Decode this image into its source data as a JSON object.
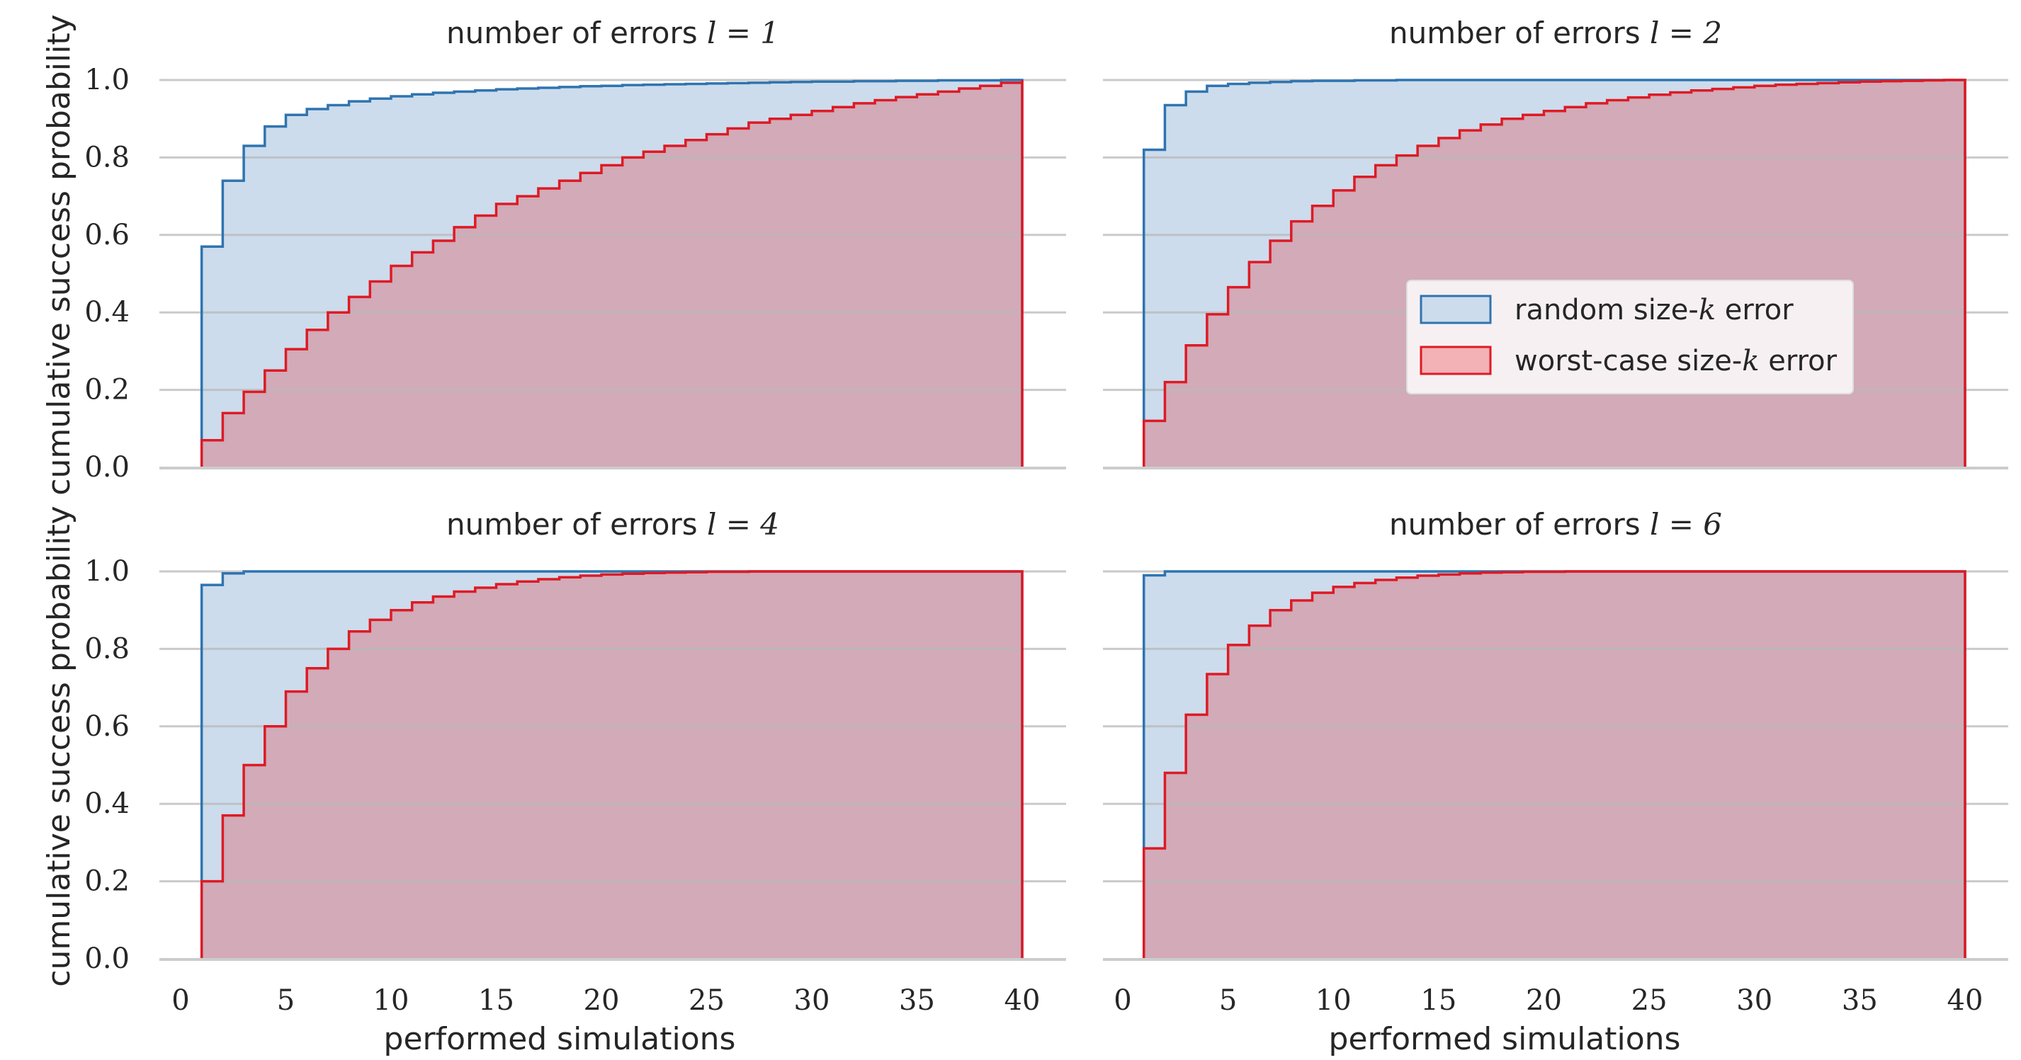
{
  "figure": {
    "ylabel": "cumulative success probability",
    "xlabel": "performed simulations"
  },
  "legend": {
    "items": [
      {
        "label_prefix": "random size-",
        "label_var": "k",
        "label_suffix": " error",
        "color": "#1f77b4"
      },
      {
        "label_prefix": "worst-case size-",
        "label_var": "k",
        "label_suffix": " error",
        "color": "#d62728"
      }
    ]
  },
  "colors": {
    "random_line": "#2f74b0",
    "random_fill": "#ccdcec",
    "worst_line": "#de1a24",
    "worst_fill": "#d2aab8",
    "grid": "#b8b8b8",
    "axis": "#cccccc"
  },
  "chart_data": [
    {
      "type": "area",
      "title_prefix": "number of errors ",
      "title_math": "l = 1",
      "xlim": [
        1,
        40
      ],
      "ylim": [
        0,
        1
      ],
      "xticks": [
        0,
        5,
        10,
        15,
        20,
        25,
        30,
        35,
        40
      ],
      "yticks": [
        "0.0",
        "0.2",
        "0.4",
        "0.6",
        "0.8",
        "1.0"
      ],
      "grid": true,
      "series": [
        {
          "name": "random size-k error",
          "x": [
            1,
            2,
            3,
            4,
            5,
            6,
            7,
            8,
            9,
            10,
            11,
            12,
            13,
            14,
            15,
            16,
            17,
            18,
            19,
            20,
            21,
            22,
            23,
            24,
            25,
            26,
            27,
            28,
            29,
            30,
            31,
            32,
            33,
            34,
            35,
            36,
            37,
            38,
            39,
            40
          ],
          "values": [
            0.57,
            0.74,
            0.83,
            0.88,
            0.91,
            0.925,
            0.935,
            0.945,
            0.952,
            0.958,
            0.963,
            0.967,
            0.97,
            0.973,
            0.976,
            0.978,
            0.98,
            0.982,
            0.984,
            0.985,
            0.987,
            0.988,
            0.989,
            0.99,
            0.991,
            0.992,
            0.993,
            0.994,
            0.995,
            0.996,
            0.996,
            0.997,
            0.997,
            0.998,
            0.998,
            0.999,
            0.999,
            0.999,
            1.0,
            1.0
          ]
        },
        {
          "name": "worst-case size-k error",
          "x": [
            1,
            2,
            3,
            4,
            5,
            6,
            7,
            8,
            9,
            10,
            11,
            12,
            13,
            14,
            15,
            16,
            17,
            18,
            19,
            20,
            21,
            22,
            23,
            24,
            25,
            26,
            27,
            28,
            29,
            30,
            31,
            32,
            33,
            34,
            35,
            36,
            37,
            38,
            39,
            40
          ],
          "values": [
            0.07,
            0.14,
            0.195,
            0.25,
            0.305,
            0.355,
            0.4,
            0.44,
            0.48,
            0.52,
            0.555,
            0.585,
            0.62,
            0.65,
            0.68,
            0.7,
            0.72,
            0.74,
            0.76,
            0.78,
            0.8,
            0.815,
            0.83,
            0.845,
            0.86,
            0.875,
            0.89,
            0.9,
            0.91,
            0.92,
            0.93,
            0.94,
            0.948,
            0.956,
            0.963,
            0.97,
            0.978,
            0.985,
            0.993,
            1.0
          ]
        }
      ]
    },
    {
      "type": "area",
      "title_prefix": "number of errors ",
      "title_math": "l = 2",
      "xlim": [
        1,
        40
      ],
      "ylim": [
        0,
        1
      ],
      "xticks": [
        0,
        5,
        10,
        15,
        20,
        25,
        30,
        35,
        40
      ],
      "yticks": [
        "0.0",
        "0.2",
        "0.4",
        "0.6",
        "0.8",
        "1.0"
      ],
      "grid": true,
      "series": [
        {
          "name": "random size-k error",
          "x": [
            1,
            2,
            3,
            4,
            5,
            6,
            7,
            8,
            9,
            10,
            11,
            12,
            13,
            14,
            15,
            16,
            17,
            18,
            19,
            20,
            21,
            22,
            23,
            24,
            25,
            26,
            27,
            28,
            29,
            30,
            31,
            32,
            33,
            34,
            35,
            36,
            37,
            38,
            39,
            40
          ],
          "values": [
            0.82,
            0.935,
            0.97,
            0.985,
            0.99,
            0.993,
            0.995,
            0.997,
            0.998,
            0.998,
            0.999,
            0.999,
            1.0,
            1.0,
            1.0,
            1.0,
            1.0,
            1.0,
            1.0,
            1.0,
            1.0,
            1.0,
            1.0,
            1.0,
            1.0,
            1.0,
            1.0,
            1.0,
            1.0,
            1.0,
            1.0,
            1.0,
            1.0,
            1.0,
            1.0,
            1.0,
            1.0,
            1.0,
            1.0,
            1.0
          ]
        },
        {
          "name": "worst-case size-k error",
          "x": [
            1,
            2,
            3,
            4,
            5,
            6,
            7,
            8,
            9,
            10,
            11,
            12,
            13,
            14,
            15,
            16,
            17,
            18,
            19,
            20,
            21,
            22,
            23,
            24,
            25,
            26,
            27,
            28,
            29,
            30,
            31,
            32,
            33,
            34,
            35,
            36,
            37,
            38,
            39,
            40
          ],
          "values": [
            0.12,
            0.22,
            0.315,
            0.395,
            0.465,
            0.53,
            0.585,
            0.635,
            0.675,
            0.715,
            0.75,
            0.78,
            0.805,
            0.83,
            0.85,
            0.87,
            0.885,
            0.9,
            0.91,
            0.92,
            0.93,
            0.94,
            0.948,
            0.955,
            0.962,
            0.968,
            0.973,
            0.977,
            0.981,
            0.985,
            0.988,
            0.99,
            0.992,
            0.994,
            0.996,
            0.997,
            0.998,
            0.999,
            1.0,
            1.0
          ]
        }
      ]
    },
    {
      "type": "area",
      "title_prefix": "number of errors ",
      "title_math": "l = 4",
      "xlim": [
        1,
        40
      ],
      "ylim": [
        0,
        1
      ],
      "xticks": [
        0,
        5,
        10,
        15,
        20,
        25,
        30,
        35,
        40
      ],
      "yticks": [
        "0.0",
        "0.2",
        "0.4",
        "0.6",
        "0.8",
        "1.0"
      ],
      "grid": true,
      "series": [
        {
          "name": "random size-k error",
          "x": [
            1,
            2,
            3,
            4,
            5,
            6,
            7,
            8,
            9,
            10,
            11,
            12,
            13,
            14,
            15,
            16,
            17,
            18,
            19,
            20,
            21,
            22,
            23,
            24,
            25,
            26,
            27,
            28,
            29,
            30,
            31,
            32,
            33,
            34,
            35,
            36,
            37,
            38,
            39,
            40
          ],
          "values": [
            0.965,
            0.995,
            1.0,
            1.0,
            1.0,
            1.0,
            1.0,
            1.0,
            1.0,
            1.0,
            1.0,
            1.0,
            1.0,
            1.0,
            1.0,
            1.0,
            1.0,
            1.0,
            1.0,
            1.0,
            1.0,
            1.0,
            1.0,
            1.0,
            1.0,
            1.0,
            1.0,
            1.0,
            1.0,
            1.0,
            1.0,
            1.0,
            1.0,
            1.0,
            1.0,
            1.0,
            1.0,
            1.0,
            1.0,
            1.0
          ]
        },
        {
          "name": "worst-case size-k error",
          "x": [
            1,
            2,
            3,
            4,
            5,
            6,
            7,
            8,
            9,
            10,
            11,
            12,
            13,
            14,
            15,
            16,
            17,
            18,
            19,
            20,
            21,
            22,
            23,
            24,
            25,
            26,
            27,
            28,
            29,
            30,
            31,
            32,
            33,
            34,
            35,
            36,
            37,
            38,
            39,
            40
          ],
          "values": [
            0.2,
            0.37,
            0.5,
            0.6,
            0.69,
            0.75,
            0.8,
            0.845,
            0.875,
            0.9,
            0.92,
            0.935,
            0.948,
            0.958,
            0.967,
            0.974,
            0.98,
            0.985,
            0.989,
            0.992,
            0.994,
            0.996,
            0.997,
            0.998,
            0.999,
            0.999,
            1.0,
            1.0,
            1.0,
            1.0,
            1.0,
            1.0,
            1.0,
            1.0,
            1.0,
            1.0,
            1.0,
            1.0,
            1.0,
            1.0
          ]
        }
      ]
    },
    {
      "type": "area",
      "title_prefix": "number of errors ",
      "title_math": "l = 6",
      "xlim": [
        1,
        40
      ],
      "ylim": [
        0,
        1
      ],
      "xticks": [
        0,
        5,
        10,
        15,
        20,
        25,
        30,
        35,
        40
      ],
      "yticks": [
        "0.0",
        "0.2",
        "0.4",
        "0.6",
        "0.8",
        "1.0"
      ],
      "grid": true,
      "series": [
        {
          "name": "random size-k error",
          "x": [
            1,
            2,
            3,
            4,
            5,
            6,
            7,
            8,
            9,
            10,
            11,
            12,
            13,
            14,
            15,
            16,
            17,
            18,
            19,
            20,
            21,
            22,
            23,
            24,
            25,
            26,
            27,
            28,
            29,
            30,
            31,
            32,
            33,
            34,
            35,
            36,
            37,
            38,
            39,
            40
          ],
          "values": [
            0.99,
            1.0,
            1.0,
            1.0,
            1.0,
            1.0,
            1.0,
            1.0,
            1.0,
            1.0,
            1.0,
            1.0,
            1.0,
            1.0,
            1.0,
            1.0,
            1.0,
            1.0,
            1.0,
            1.0,
            1.0,
            1.0,
            1.0,
            1.0,
            1.0,
            1.0,
            1.0,
            1.0,
            1.0,
            1.0,
            1.0,
            1.0,
            1.0,
            1.0,
            1.0,
            1.0,
            1.0,
            1.0,
            1.0,
            1.0
          ]
        },
        {
          "name": "worst-case size-k error",
          "x": [
            1,
            2,
            3,
            4,
            5,
            6,
            7,
            8,
            9,
            10,
            11,
            12,
            13,
            14,
            15,
            16,
            17,
            18,
            19,
            20,
            21,
            22,
            23,
            24,
            25,
            26,
            27,
            28,
            29,
            30,
            31,
            32,
            33,
            34,
            35,
            36,
            37,
            38,
            39,
            40
          ],
          "values": [
            0.285,
            0.48,
            0.63,
            0.735,
            0.81,
            0.86,
            0.9,
            0.925,
            0.945,
            0.96,
            0.97,
            0.978,
            0.984,
            0.989,
            0.992,
            0.995,
            0.997,
            0.998,
            0.999,
            0.999,
            1.0,
            1.0,
            1.0,
            1.0,
            1.0,
            1.0,
            1.0,
            1.0,
            1.0,
            1.0,
            1.0,
            1.0,
            1.0,
            1.0,
            1.0,
            1.0,
            1.0,
            1.0,
            1.0,
            1.0
          ]
        }
      ]
    }
  ]
}
